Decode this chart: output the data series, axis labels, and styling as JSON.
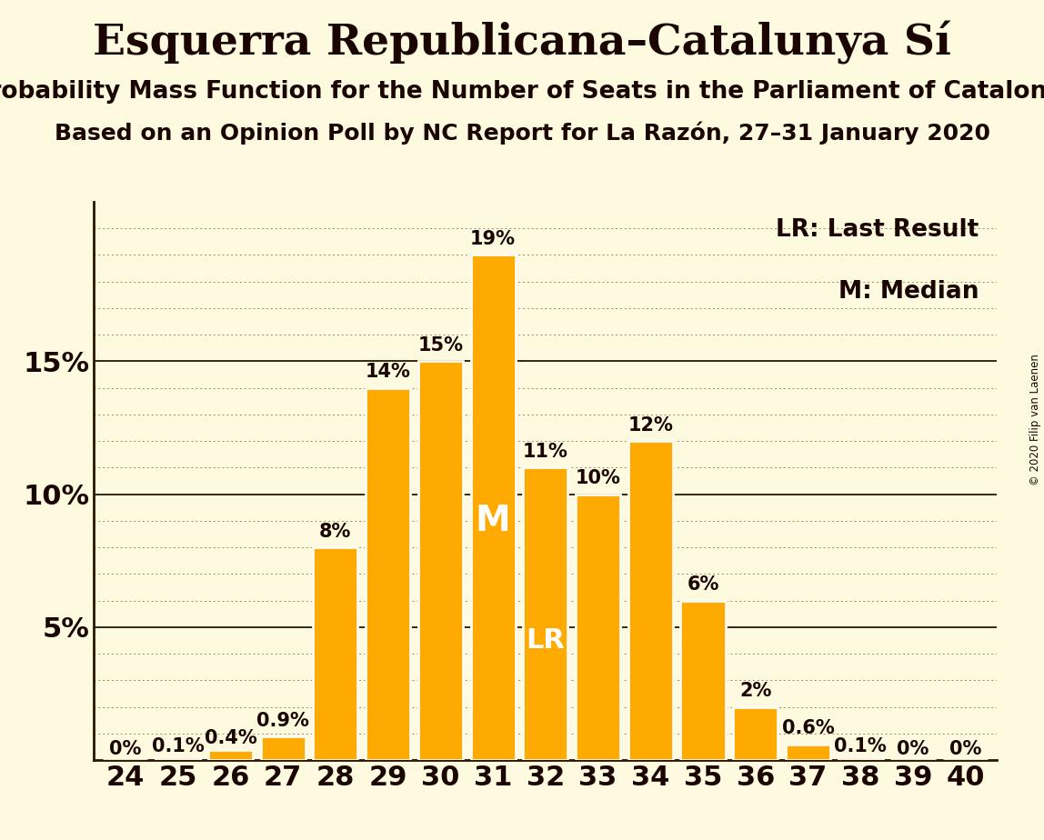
{
  "seats": [
    24,
    25,
    26,
    27,
    28,
    29,
    30,
    31,
    32,
    33,
    34,
    35,
    36,
    37,
    38,
    39,
    40
  ],
  "values": [
    0.0,
    0.1,
    0.4,
    0.9,
    8.0,
    14.0,
    15.0,
    19.0,
    11.0,
    10.0,
    12.0,
    6.0,
    2.0,
    0.6,
    0.1,
    0.0,
    0.0
  ],
  "labels": [
    "0%",
    "0.1%",
    "0.4%",
    "0.9%",
    "8%",
    "14%",
    "15%",
    "19%",
    "11%",
    "10%",
    "12%",
    "6%",
    "2%",
    "0.6%",
    "0.1%",
    "0%",
    "0%"
  ],
  "bar_color": "#FFAA00",
  "bar_edge_color": "#FFFAF0",
  "background_color": "#FEFAE0",
  "title": "Esquerra Republicana–Catalunya Sí",
  "subtitle1": "Probability Mass Function for the Number of Seats in the Parliament of Catalonia",
  "subtitle2": "Based on an Opinion Poll by NC Report for La Razón, 27–31 January 2020",
  "ylim": [
    0,
    21
  ],
  "median_seat": 31,
  "lr_seat": 32,
  "median_label": "M",
  "lr_label": "LR",
  "legend_lr": "LR: Last Result",
  "legend_m": "M: Median",
  "copyright": "© 2020 Filip van Laenen",
  "title_fontsize": 34,
  "subtitle1_fontsize": 19,
  "subtitle2_fontsize": 18,
  "axis_tick_fontsize": 22,
  "bar_label_fontsize": 15,
  "legend_fontsize": 19,
  "inside_label_fontsize_M": 28,
  "inside_label_fontsize_LR": 22
}
